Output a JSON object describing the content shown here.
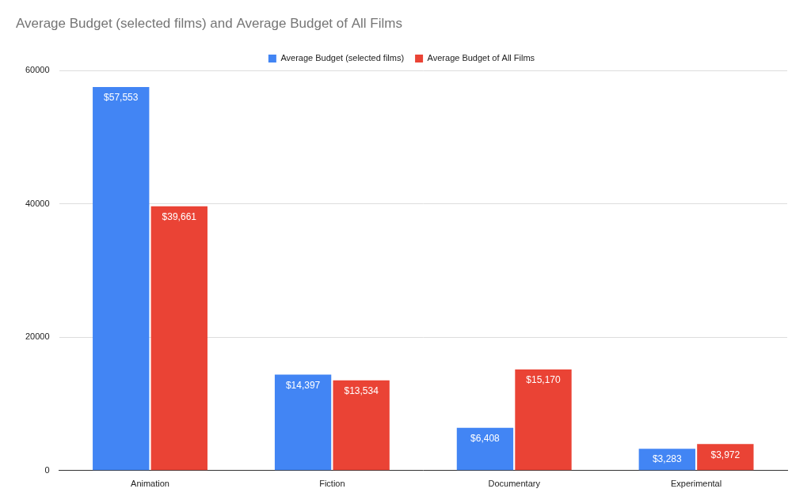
{
  "chart_data": {
    "type": "bar",
    "title": "Average Budget (selected films) and Average Budget of All Films",
    "categories": [
      "Animation",
      "Fiction",
      "Documentary",
      "Experimental"
    ],
    "series": [
      {
        "name": "Average Budget (selected films)",
        "color": "#4285f4",
        "values": [
          57553,
          14397,
          6408,
          3283
        ],
        "value_labels": [
          "$57,553",
          "$14,397",
          "$6,408",
          "$3,283"
        ]
      },
      {
        "name": "Average Budget of All Films",
        "color": "#ea4335",
        "values": [
          39661,
          13534,
          15170,
          3972
        ],
        "value_labels": [
          "$39,661",
          "$13,534",
          "$15,170",
          "$3,972"
        ]
      }
    ],
    "ylim": [
      0,
      60000
    ],
    "yticks": [
      0,
      20000,
      40000,
      60000
    ],
    "grid": true,
    "legend": "top",
    "data_labels": true
  }
}
